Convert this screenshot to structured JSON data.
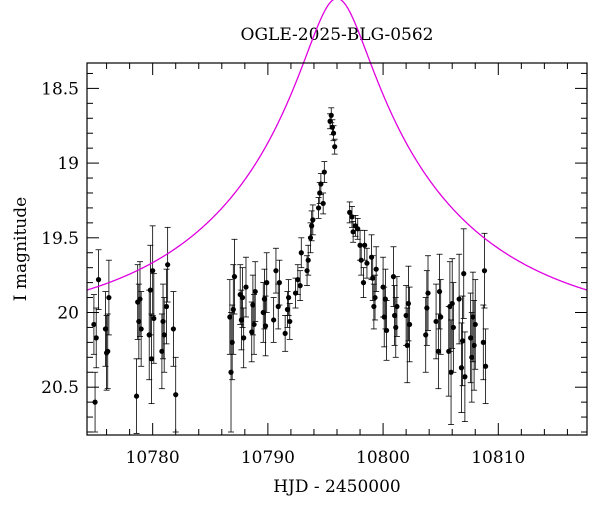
{
  "chart_data": {
    "type": "scatter",
    "title": "OGLE-2025-BLG-0562",
    "xlabel": "HJD - 2450000",
    "ylabel": "I magnitude",
    "xlim": [
      10774.3,
      10817.7
    ],
    "ylim": [
      20.82,
      18.33
    ],
    "y_inverted": true,
    "x_ticks": [
      10780,
      10790,
      10800,
      10810
    ],
    "y_ticks": [
      18.5,
      19,
      19.5,
      20,
      20.5
    ],
    "x_tick_labels": [
      "10780",
      "10790",
      "10800",
      "10810"
    ],
    "y_tick_labels": [
      "18.5",
      "19",
      "19.5",
      "20",
      "20.5"
    ],
    "model_color": "#e000e0",
    "point_color": "#000000",
    "model": {
      "t0": 10796.0,
      "tE": 20,
      "u0": 0.13,
      "I_base": 20.12
    },
    "points": [
      [
        10774.9,
        20.08,
        0.2
      ],
      [
        10775.0,
        20.6,
        0.2
      ],
      [
        10775.1,
        20.17,
        0.2
      ],
      [
        10775.3,
        19.78,
        0.2
      ],
      [
        10775.9,
        20.11,
        0.25
      ],
      [
        10776.0,
        20.27,
        0.25
      ],
      [
        10776.1,
        20.26,
        0.25
      ],
      [
        10776.2,
        19.9,
        0.25
      ],
      [
        10778.6,
        20.56,
        0.25
      ],
      [
        10778.7,
        19.93,
        0.25
      ],
      [
        10778.8,
        20.06,
        0.25
      ],
      [
        10778.9,
        19.91,
        0.25
      ],
      [
        10779.0,
        20.11,
        0.25
      ],
      [
        10779.7,
        20.15,
        0.3
      ],
      [
        10779.8,
        19.85,
        0.3
      ],
      [
        10779.9,
        20.31,
        0.3
      ],
      [
        10780.0,
        19.72,
        0.3
      ],
      [
        10780.1,
        20.04,
        0.3
      ],
      [
        10780.8,
        20.26,
        0.25
      ],
      [
        10780.9,
        20.06,
        0.25
      ],
      [
        10781.0,
        20.15,
        0.25
      ],
      [
        10781.2,
        19.96,
        0.25
      ],
      [
        10781.3,
        19.68,
        0.25
      ],
      [
        10781.8,
        20.11,
        0.25
      ],
      [
        10782.0,
        20.55,
        0.25
      ],
      [
        10786.7,
        20.03,
        0.25
      ],
      [
        10786.8,
        20.4,
        0.4
      ],
      [
        10786.9,
        20.2,
        0.25
      ],
      [
        10787.0,
        19.98,
        0.3
      ],
      [
        10787.1,
        19.76,
        0.25
      ],
      [
        10787.6,
        19.88,
        0.2
      ],
      [
        10787.7,
        20.05,
        0.2
      ],
      [
        10787.8,
        19.9,
        0.2
      ],
      [
        10787.9,
        20.17,
        0.2
      ],
      [
        10788.1,
        19.83,
        0.2
      ],
      [
        10788.6,
        20.13,
        0.2
      ],
      [
        10788.7,
        19.95,
        0.2
      ],
      [
        10788.8,
        20.08,
        0.2
      ],
      [
        10788.9,
        19.86,
        0.2
      ],
      [
        10789.6,
        20.0,
        0.2
      ],
      [
        10789.7,
        19.91,
        0.2
      ],
      [
        10789.8,
        20.09,
        0.2
      ],
      [
        10789.9,
        19.8,
        0.2
      ],
      [
        10790.5,
        20.05,
        0.15
      ],
      [
        10790.7,
        19.72,
        0.15
      ],
      [
        10790.9,
        19.96,
        0.15
      ],
      [
        10791.0,
        19.8,
        0.15
      ],
      [
        10791.5,
        20.14,
        0.12
      ],
      [
        10791.7,
        19.98,
        0.12
      ],
      [
        10791.8,
        19.9,
        0.12
      ],
      [
        10791.9,
        20.06,
        0.12
      ],
      [
        10792.4,
        19.87,
        0.1
      ],
      [
        10792.6,
        19.78,
        0.1
      ],
      [
        10792.8,
        19.82,
        0.1
      ],
      [
        10792.9,
        19.6,
        0.1
      ],
      [
        10793.4,
        19.72,
        0.1
      ],
      [
        10793.5,
        19.65,
        0.1
      ],
      [
        10793.7,
        19.5,
        0.1
      ],
      [
        10793.8,
        19.42,
        0.1
      ],
      [
        10793.9,
        19.38,
        0.1
      ],
      [
        10794.4,
        19.3,
        0.07
      ],
      [
        10794.5,
        19.2,
        0.07
      ],
      [
        10794.6,
        19.14,
        0.07
      ],
      [
        10794.8,
        19.27,
        0.07
      ],
      [
        10794.9,
        19.06,
        0.07
      ],
      [
        10795.4,
        18.72,
        0.05
      ],
      [
        10795.5,
        18.68,
        0.05
      ],
      [
        10795.6,
        18.76,
        0.05
      ],
      [
        10795.7,
        18.8,
        0.05
      ],
      [
        10795.8,
        18.89,
        0.05
      ],
      [
        10797.1,
        19.33,
        0.07
      ],
      [
        10797.3,
        19.36,
        0.07
      ],
      [
        10797.4,
        19.46,
        0.07
      ],
      [
        10797.6,
        19.42,
        0.07
      ],
      [
        10797.8,
        19.44,
        0.07
      ],
      [
        10798.0,
        19.55,
        0.1
      ],
      [
        10798.1,
        19.65,
        0.1
      ],
      [
        10798.3,
        19.8,
        0.1
      ],
      [
        10798.4,
        19.55,
        0.1
      ],
      [
        10798.6,
        19.67,
        0.1
      ],
      [
        10799.0,
        19.63,
        0.15
      ],
      [
        10799.1,
        19.77,
        0.15
      ],
      [
        10799.2,
        19.96,
        0.15
      ],
      [
        10799.3,
        19.9,
        0.15
      ],
      [
        10799.4,
        19.71,
        0.15
      ],
      [
        10800.0,
        19.83,
        0.2
      ],
      [
        10800.1,
        20.03,
        0.2
      ],
      [
        10800.2,
        19.91,
        0.2
      ],
      [
        10800.3,
        20.12,
        0.2
      ],
      [
        10800.9,
        19.76,
        0.2
      ],
      [
        10801.0,
        20.02,
        0.2
      ],
      [
        10801.1,
        20.1,
        0.2
      ],
      [
        10801.2,
        19.96,
        0.2
      ],
      [
        10802.0,
        20.02,
        0.2
      ],
      [
        10802.1,
        20.22,
        0.25
      ],
      [
        10802.2,
        19.94,
        0.25
      ],
      [
        10802.3,
        20.08,
        0.25
      ],
      [
        10803.7,
        20.15,
        0.25
      ],
      [
        10803.8,
        19.97,
        0.25
      ],
      [
        10803.9,
        19.87,
        0.25
      ],
      [
        10804.6,
        20.06,
        0.25
      ],
      [
        10804.8,
        20.26,
        0.25
      ],
      [
        10804.9,
        19.86,
        0.25
      ],
      [
        10805.0,
        20.03,
        0.25
      ],
      [
        10805.7,
        20.26,
        0.3
      ],
      [
        10805.8,
        19.96,
        0.3
      ],
      [
        10805.9,
        20.4,
        0.35
      ],
      [
        10806.0,
        19.94,
        0.3
      ],
      [
        10806.1,
        20.1,
        0.3
      ],
      [
        10806.6,
        19.91,
        0.3
      ],
      [
        10806.8,
        20.37,
        0.3
      ],
      [
        10806.9,
        20.19,
        0.3
      ],
      [
        10807.0,
        19.74,
        0.3
      ],
      [
        10807.1,
        20.43,
        0.3
      ],
      [
        10807.6,
        20.17,
        0.3
      ],
      [
        10807.7,
        20.3,
        0.3
      ],
      [
        10807.8,
        20.03,
        0.3
      ],
      [
        10807.9,
        20.22,
        0.3
      ],
      [
        10808.0,
        20.08,
        0.3
      ],
      [
        10808.7,
        20.2,
        0.25
      ],
      [
        10808.8,
        19.72,
        0.25
      ],
      [
        10808.9,
        20.36,
        0.25
      ]
    ]
  }
}
